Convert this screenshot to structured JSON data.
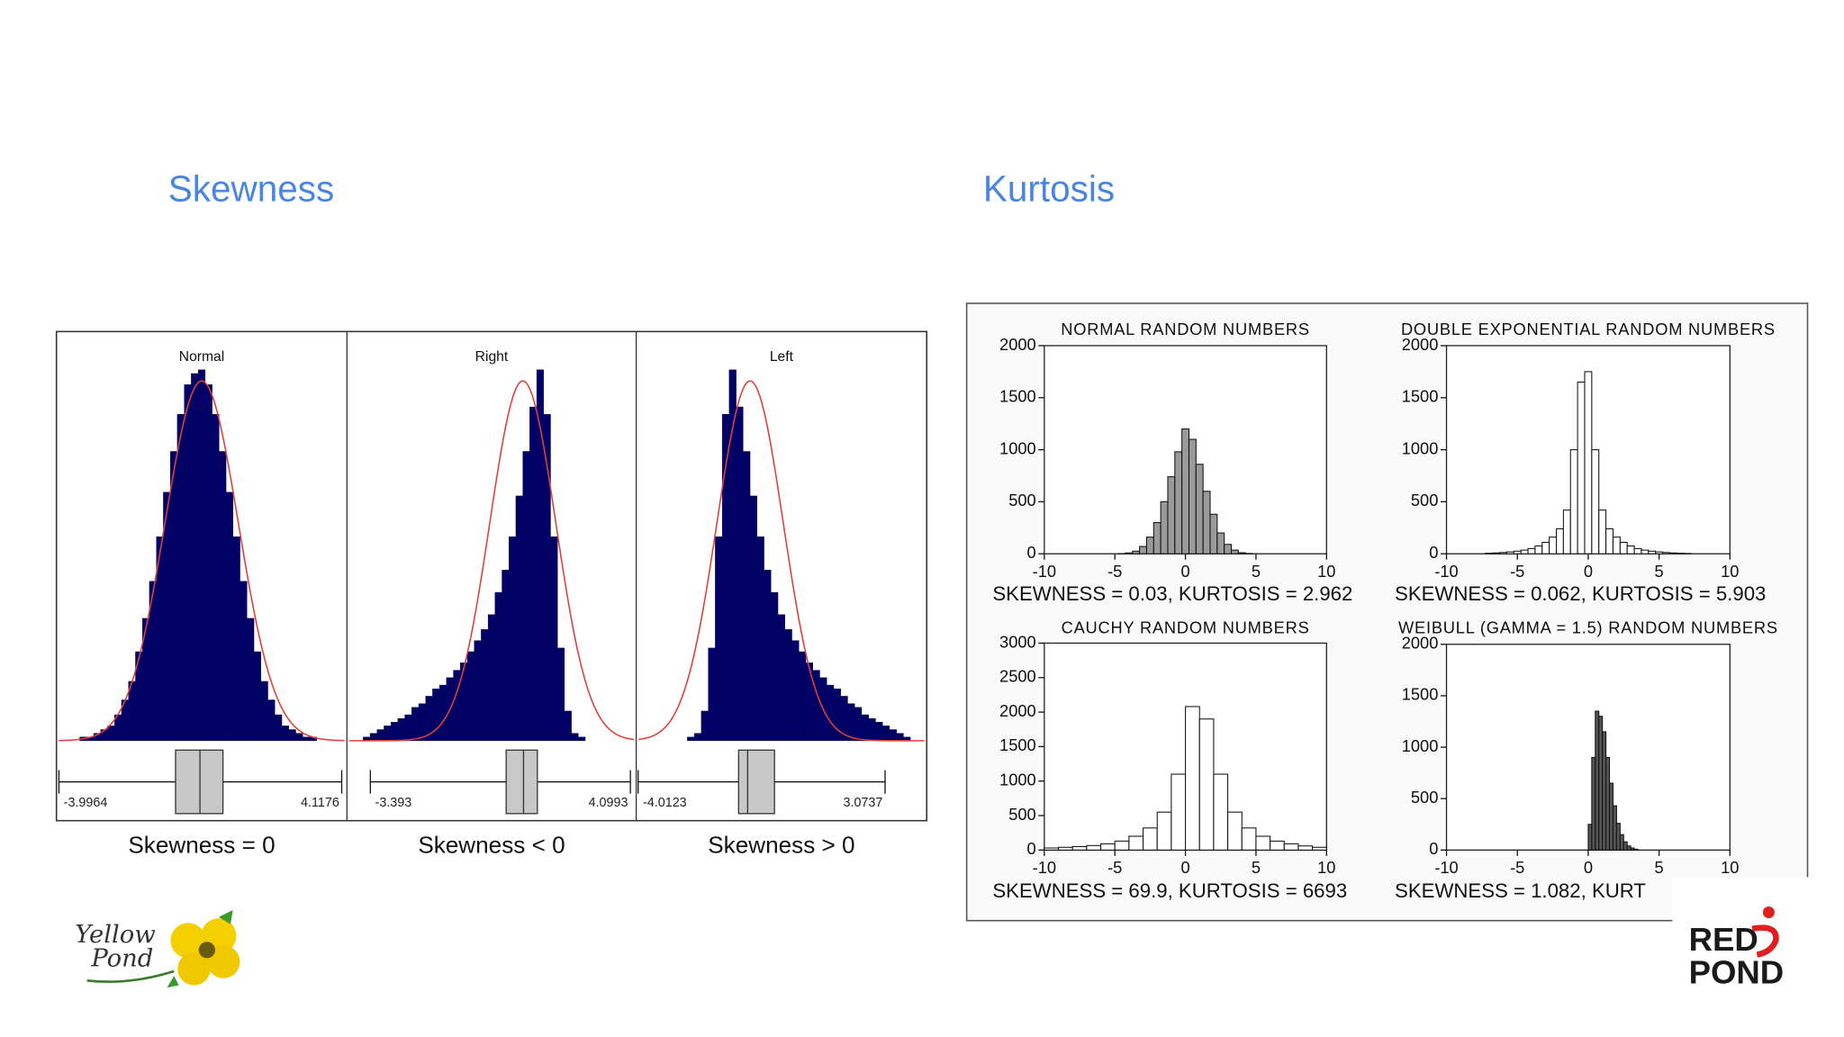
{
  "slide": {
    "headings": [
      "Skewness",
      "Kurtosis"
    ],
    "logos": {
      "yellow_pond": [
        "Yellow",
        "Pond"
      ],
      "red_pond": [
        "RED",
        "POND"
      ]
    }
  },
  "chart_data": [
    {
      "type": "histogram",
      "title": "Normal",
      "xlabel": "Skewness = 0",
      "color": "#000066",
      "xlim": [
        -4,
        4.2
      ],
      "ylim": [
        0,
        110
      ],
      "bins": [
        -4,
        -3.8,
        -3.6,
        -3.4,
        -3.2,
        -3,
        -2.8,
        -2.6,
        -2.4,
        -2.2,
        -2,
        -1.8,
        -1.6,
        -1.4,
        -1.2,
        -1,
        -0.8,
        -0.6,
        -0.4,
        -0.2,
        0,
        0.2,
        0.4,
        0.6,
        0.8,
        1,
        1.2,
        1.4,
        1.6,
        1.8,
        2,
        2.2,
        2.4,
        2.6,
        2.8,
        3,
        3.2,
        3.4,
        3.6,
        3.8,
        4,
        4.2
      ],
      "values": [
        0,
        0,
        0,
        1,
        1,
        2,
        3,
        4,
        7,
        11,
        16,
        24,
        33,
        43,
        55,
        67,
        78,
        88,
        96,
        99,
        100,
        96,
        88,
        78,
        67,
        55,
        43,
        33,
        24,
        16,
        11,
        7,
        4,
        3,
        2,
        1,
        1,
        0,
        0,
        0,
        0
      ],
      "fit": {
        "mean": 0.1,
        "sd": 1.05,
        "peak": 97,
        "color": "#e0403a"
      },
      "box": {
        "min": -3.9964,
        "q1": -0.65,
        "median": 0.05,
        "q3": 0.71,
        "max": 4.1176,
        "color": "#c8c8c8"
      }
    },
    {
      "type": "histogram",
      "title": "Right",
      "xlabel": "Skewness < 0",
      "color": "#000066",
      "xlim": [
        -4,
        4.2
      ],
      "ylim": [
        0,
        110
      ],
      "bins": [
        -4,
        -3.8,
        -3.6,
        -3.4,
        -3.2,
        -3,
        -2.8,
        -2.6,
        -2.4,
        -2.2,
        -2,
        -1.8,
        -1.6,
        -1.4,
        -1.2,
        -1,
        -0.8,
        -0.6,
        -0.4,
        -0.2,
        0,
        0.2,
        0.4,
        0.6,
        0.8,
        1,
        1.2,
        1.4,
        1.6,
        1.8,
        2,
        2.2,
        2.4,
        2.6,
        2.8,
        3,
        3.2,
        3.4,
        3.6,
        3.8,
        4,
        4.2
      ],
      "values": [
        0,
        0,
        1,
        2,
        3,
        4,
        5,
        6,
        7,
        9,
        10,
        12,
        14,
        15,
        17,
        19,
        21,
        24,
        27,
        30,
        34,
        40,
        46,
        55,
        66,
        78,
        90,
        100,
        88,
        55,
        25,
        8,
        2,
        1,
        0,
        0,
        0,
        0,
        0,
        0,
        0
      ],
      "fit": {
        "mean": 1.0,
        "sd": 0.95,
        "peak": 97,
        "color": "#e0403a"
      },
      "box": {
        "min": -3.393,
        "q1": 0.52,
        "median": 1.02,
        "q3": 1.42,
        "max": 4.0993,
        "color": "#c8c8c8"
      }
    },
    {
      "type": "histogram",
      "title": "Left",
      "xlabel": "Skewness > 0",
      "color": "#000066",
      "xlim": [
        -4,
        4.2
      ],
      "ylim": [
        0,
        110
      ],
      "bins": [
        -4,
        -3.8,
        -3.6,
        -3.4,
        -3.2,
        -3,
        -2.8,
        -2.6,
        -2.4,
        -2.2,
        -2,
        -1.8,
        -1.6,
        -1.4,
        -1.2,
        -1,
        -0.8,
        -0.6,
        -0.4,
        -0.2,
        0,
        0.2,
        0.4,
        0.6,
        0.8,
        1,
        1.2,
        1.4,
        1.6,
        1.8,
        2,
        2.2,
        2.4,
        2.6,
        2.8,
        3,
        3.2,
        3.4,
        3.6,
        3.8,
        4,
        4.2
      ],
      "values": [
        0,
        0,
        0,
        0,
        0,
        0,
        0,
        1,
        2,
        8,
        25,
        55,
        88,
        100,
        90,
        78,
        66,
        55,
        46,
        40,
        34,
        30,
        27,
        24,
        21,
        19,
        17,
        15,
        14,
        12,
        10,
        9,
        7,
        6,
        5,
        4,
        3,
        2,
        1,
        0,
        0
      ],
      "fit": {
        "mean": -0.8,
        "sd": 0.95,
        "peak": 97,
        "color": "#e0403a"
      },
      "box": {
        "min": -4.0123,
        "q1": -1.13,
        "median": -0.87,
        "q3": -0.1,
        "max": 3.0737,
        "color": "#c8c8c8"
      }
    },
    {
      "type": "histogram",
      "title": "NORMAL RANDOM NUMBERS",
      "note": "SKEWNESS = 0.03, KURTOSIS = 2.962",
      "color": "#9a9a9a",
      "xlim": [
        -10,
        10
      ],
      "xticks": [
        -10,
        -5,
        0,
        5,
        10
      ],
      "ylim": [
        0,
        2000
      ],
      "yticks": [
        0,
        500,
        1000,
        1500,
        2000
      ],
      "bins": [
        -4.75,
        -4.25,
        -3.75,
        -3.25,
        -2.75,
        -2.25,
        -1.75,
        -1.25,
        -0.75,
        -0.25,
        0.25,
        0.75,
        1.25,
        1.75,
        2.25,
        2.75,
        3.25,
        3.75,
        4.25,
        4.75
      ],
      "values": [
        2,
        8,
        25,
        70,
        160,
        300,
        500,
        740,
        980,
        1200,
        1100,
        860,
        600,
        380,
        200,
        90,
        35,
        10,
        3
      ]
    },
    {
      "type": "histogram",
      "title": "DOUBLE EXPONENTIAL RANDOM NUMBERS",
      "note": "SKEWNESS = 0.062, KURTOSIS = 5.903",
      "color": "#ffffff",
      "xlim": [
        -10,
        10
      ],
      "xticks": [
        -10,
        -5,
        0,
        5,
        10
      ],
      "ylim": [
        0,
        2000
      ],
      "yticks": [
        0,
        500,
        1000,
        1500,
        2000
      ],
      "bins": [
        -7.25,
        -6.75,
        -6.25,
        -5.75,
        -5.25,
        -4.75,
        -4.25,
        -3.75,
        -3.25,
        -2.75,
        -2.25,
        -1.75,
        -1.25,
        -0.75,
        -0.25,
        0.25,
        0.75,
        1.25,
        1.75,
        2.25,
        2.75,
        3.25,
        3.75,
        4.25,
        4.75,
        5.25,
        5.75,
        6.25,
        6.75,
        7.25
      ],
      "values": [
        5,
        8,
        12,
        18,
        25,
        35,
        50,
        75,
        110,
        160,
        240,
        420,
        1000,
        1650,
        1750,
        1000,
        420,
        240,
        160,
        110,
        75,
        50,
        35,
        25,
        18,
        12,
        8,
        5,
        3
      ]
    },
    {
      "type": "histogram",
      "title": "CAUCHY RANDOM NUMBERS",
      "note": "SKEWNESS = 69.9, KURTOSIS = 6693",
      "color": "#ffffff",
      "xlim": [
        -10,
        10
      ],
      "xticks": [
        -10,
        -5,
        0,
        5,
        10
      ],
      "ylim": [
        0,
        3000
      ],
      "yticks": [
        0,
        500,
        1000,
        1500,
        2000,
        2500,
        3000
      ],
      "bins": [
        -10,
        -9,
        -8,
        -7,
        -6,
        -5,
        -4,
        -3,
        -2,
        -1,
        0,
        1,
        2,
        3,
        4,
        5,
        6,
        7,
        8,
        9,
        10
      ],
      "values": [
        30,
        40,
        50,
        65,
        90,
        130,
        200,
        320,
        550,
        1100,
        2080,
        1900,
        1100,
        550,
        320,
        200,
        130,
        90,
        60,
        40
      ]
    },
    {
      "type": "histogram",
      "title": "WEIBULL (GAMMA = 1.5) RANDOM NUMBERS",
      "note": "SKEWNESS = 1.082, KURT",
      "color": "#555555",
      "xlim": [
        -10,
        10
      ],
      "xticks": [
        -10,
        -5,
        0,
        5,
        10
      ],
      "ylim": [
        0,
        2000
      ],
      "yticks": [
        0,
        500,
        1000,
        1500,
        2000
      ],
      "bins": [
        0,
        0.25,
        0.5,
        0.75,
        1,
        1.25,
        1.5,
        1.75,
        2,
        2.25,
        2.5,
        2.75,
        3,
        3.25,
        3.5
      ],
      "values": [
        250,
        900,
        1350,
        1300,
        1150,
        900,
        650,
        430,
        260,
        150,
        80,
        40,
        20,
        8
      ]
    }
  ]
}
